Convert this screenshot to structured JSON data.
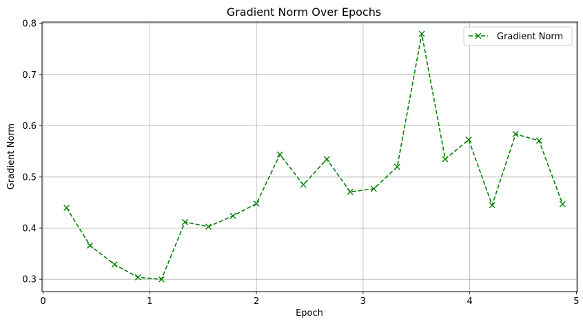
{
  "chart_data": {
    "type": "line",
    "title": "Gradient Norm Over Epochs",
    "xlabel": "Epoch",
    "ylabel": "Gradient Norm",
    "xlim": [
      -0.01,
      5.01
    ],
    "ylim": [
      0.276,
      0.803
    ],
    "xticks": [
      0,
      1,
      2,
      3,
      4,
      5
    ],
    "yticks": [
      0.3,
      0.4,
      0.5,
      0.6,
      0.7,
      0.8
    ],
    "grid": true,
    "legend_position": "top-right",
    "series": [
      {
        "name": "Gradient Norm",
        "color": "#008000",
        "line_style": "dashed",
        "marker": "x",
        "x": [
          0.22,
          0.44,
          0.67,
          0.89,
          1.11,
          1.33,
          1.55,
          1.78,
          2.0,
          2.22,
          2.44,
          2.66,
          2.88,
          3.1,
          3.32,
          3.55,
          3.77,
          3.99,
          4.21,
          4.43,
          4.65,
          4.87
        ],
        "y": [
          0.44,
          0.366,
          0.329,
          0.304,
          0.3,
          0.412,
          0.403,
          0.424,
          0.448,
          0.544,
          0.485,
          0.535,
          0.471,
          0.477,
          0.52,
          0.78,
          0.535,
          0.573,
          0.445,
          0.584,
          0.571,
          0.447
        ]
      }
    ]
  }
}
